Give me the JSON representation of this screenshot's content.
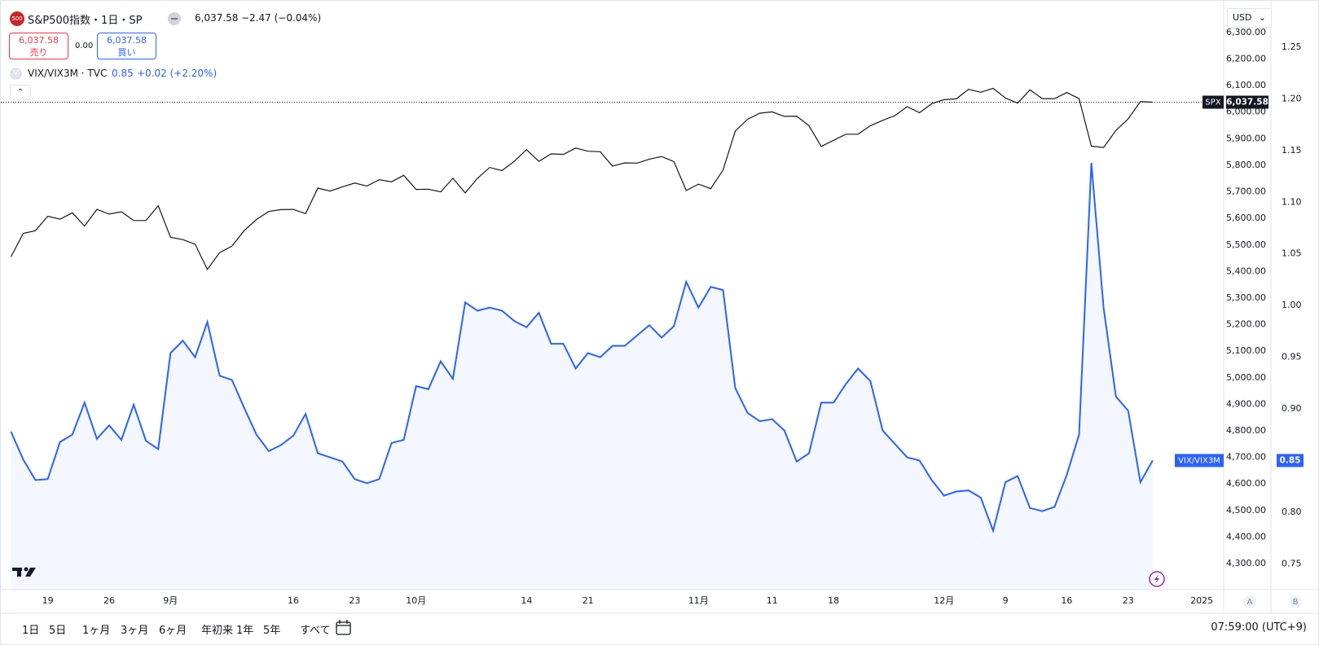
{
  "ui": {
    "symbol_icon": "500",
    "symbol": "S&P500指数・1日・SP",
    "price": "6,037.58",
    "change": "−2.47 (−0.04%)",
    "sell_price": "6,037.58",
    "sell_label": "売り",
    "spread": "0.00",
    "buy_price": "6,037.58",
    "buy_label": "買い",
    "indicator_icon": "V",
    "indicator": "VIX/VIX3M · TVC",
    "indicator_value": "0.85",
    "indicator_change": "+0.02 (+2.20%)",
    "currency": "USD",
    "spx_price_badge": "6,037.58",
    "vix_value_badge": "0.85",
    "axis_a": "A",
    "axis_b": "B",
    "ranges": [
      "1日",
      "5日",
      "1ヶ月",
      "3ヶ月",
      "6ヶ月",
      "年初来",
      "1年",
      "5年",
      "すべて"
    ],
    "time": "07:59:00 (UTC+9)"
  },
  "chart_data": {
    "type": "line",
    "grid": false,
    "categories": [
      null,
      null,
      null,
      "19",
      null,
      null,
      null,
      null,
      "26",
      null,
      null,
      null,
      null,
      "9月",
      null,
      null,
      null,
      null,
      null,
      null,
      null,
      null,
      null,
      "16",
      null,
      null,
      null,
      null,
      "23",
      null,
      null,
      null,
      null,
      "10月",
      null,
      null,
      null,
      null,
      null,
      null,
      null,
      null,
      "14",
      null,
      null,
      null,
      null,
      "21",
      null,
      null,
      null,
      null,
      null,
      null,
      null,
      null,
      "11月",
      null,
      null,
      null,
      null,
      null,
      "11",
      null,
      null,
      null,
      null,
      "18",
      null,
      null,
      null,
      null,
      null,
      null,
      null,
      null,
      "12月",
      null,
      null,
      null,
      null,
      "9",
      null,
      null,
      null,
      null,
      "16",
      null,
      null,
      null,
      null,
      "23",
      null,
      null,
      null,
      null,
      null,
      "2025"
    ],
    "series": [
      {
        "name": "SPX",
        "color": "#131722",
        "type": "line",
        "values": [
          5455,
          5543,
          5554,
          5608,
          5597,
          5621,
          5571,
          5634,
          5616,
          5625,
          5592,
          5592,
          5648,
          5529,
          5520,
          5503,
          5408,
          5471,
          5496,
          5554,
          5596,
          5626,
          5633,
          5634,
          5618,
          5714,
          5703,
          5719,
          5733,
          5722,
          5746,
          5738,
          5762,
          5709,
          5710,
          5700,
          5751,
          5696,
          5751,
          5792,
          5780,
          5815,
          5859,
          5815,
          5843,
          5841,
          5865,
          5853,
          5851,
          5797,
          5809,
          5808,
          5823,
          5833,
          5814,
          5705,
          5729,
          5712,
          5782,
          5929,
          5973,
          5996,
          6001,
          5984,
          5985,
          5949,
          5871,
          5894,
          5917,
          5917,
          5949,
          5969,
          5987,
          6021,
          5998,
          6032,
          6047,
          6050,
          6086,
          6075,
          6090,
          6053,
          6034,
          6084,
          6051,
          6051,
          6074,
          6051,
          5872,
          5867,
          5931,
          5975,
          6040,
          6037.58,
          null,
          null,
          null,
          null
        ]
      },
      {
        "name": "VIX/VIX3M",
        "color": "#2962ff",
        "type": "area",
        "axis": "y2",
        "values": [
          0.878,
          0.851,
          0.831,
          0.832,
          0.868,
          0.875,
          0.906,
          0.871,
          0.884,
          0.87,
          0.904,
          0.869,
          0.861,
          0.954,
          0.966,
          0.95,
          0.984,
          0.932,
          0.928,
          0.901,
          0.875,
          0.859,
          0.865,
          0.874,
          0.895,
          0.857,
          0.853,
          0.849,
          0.832,
          0.828,
          0.832,
          0.867,
          0.87,
          0.922,
          0.919,
          0.946,
          0.929,
          1.003,
          0.995,
          0.998,
          0.995,
          0.985,
          0.979,
          0.993,
          0.963,
          0.963,
          0.939,
          0.954,
          0.95,
          0.961,
          0.961,
          0.971,
          0.981,
          0.969,
          0.98,
          1.023,
          0.998,
          1.018,
          1.015,
          0.92,
          0.896,
          0.888,
          0.89,
          0.879,
          0.849,
          0.857,
          0.906,
          0.906,
          0.924,
          0.939,
          0.927,
          0.879,
          0.866,
          0.853,
          0.85,
          0.831,
          0.816,
          0.82,
          0.821,
          0.814,
          0.782,
          0.829,
          0.835,
          0.804,
          0.801,
          0.805,
          0.836,
          0.875,
          1.138,
          0.998,
          0.912,
          0.898,
          0.829,
          0.85,
          null,
          null,
          null,
          null
        ]
      }
    ],
    "ylim": [
      4202,
      6404
    ],
    "yticks": [
      {
        "value": 4300,
        "label": "4,300.00"
      },
      {
        "value": 4400,
        "label": "4,400.00"
      },
      {
        "value": 4500,
        "label": "4,500.00"
      },
      {
        "value": 4600,
        "label": "4,600.00"
      },
      {
        "value": 4700,
        "label": "4,700.00"
      },
      {
        "value": 4800,
        "label": "4,800.00"
      },
      {
        "value": 4900,
        "label": "4,900.00"
      },
      {
        "value": 5000,
        "label": "5,000.00"
      },
      {
        "value": 5100,
        "label": "5,100.00"
      },
      {
        "value": 5200,
        "label": "5,200.00"
      },
      {
        "value": 5300,
        "label": "5,300.00"
      },
      {
        "value": 5400,
        "label": "5,400.00"
      },
      {
        "value": 5500,
        "label": "5,500.00"
      },
      {
        "value": 5600,
        "label": "5,600.00"
      },
      {
        "value": 5700,
        "label": "5,700.00"
      },
      {
        "value": 5800,
        "label": "5,800.00"
      },
      {
        "value": 5900,
        "label": "5,900.00"
      },
      {
        "value": 6000,
        "label": "6,000.00"
      },
      {
        "value": 6100,
        "label": "6,100.00"
      },
      {
        "value": 6200,
        "label": "6,200.00"
      },
      {
        "value": 6300,
        "label": "6,300.00"
      }
    ],
    "y2lim": [
      0.725,
      1.291
    ],
    "y2ticks": [
      0.75,
      {
        "value": 0.8,
        "label": "0.80"
      },
      0.85,
      {
        "value": 0.9,
        "label": "0.90"
      },
      0.95,
      {
        "value": 1,
        "label": "1.00"
      },
      1.05,
      {
        "value": 1.1,
        "label": "1.10"
      },
      1.15,
      {
        "value": 1.2,
        "label": "1.20"
      },
      1.25
    ]
  }
}
